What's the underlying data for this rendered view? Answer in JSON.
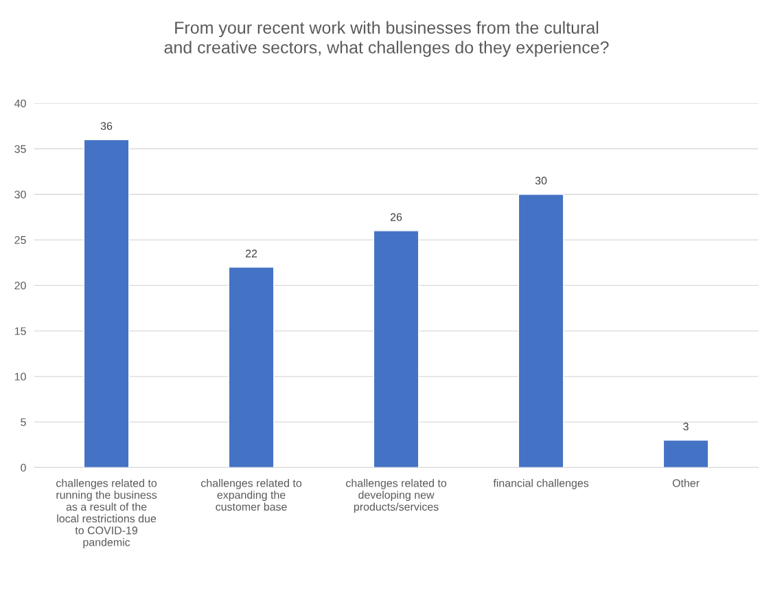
{
  "chart_data": {
    "type": "bar",
    "title": "From your recent work with businesses from the cultural\nand creative sectors, what challenges do they experience?",
    "categories": [
      "challenges related to\nrunning the business\nas a result of the\nlocal restrictions due\nto COVID-19\npandemic",
      "challenges related to\nexpanding the\ncustomer base",
      "challenges related to\ndeveloping new\nproducts/services",
      "financial challenges",
      "Other"
    ],
    "values": [
      36,
      22,
      26,
      30,
      3
    ],
    "color": "#4472c4",
    "ylim": [
      0,
      40
    ],
    "yticks": [
      0,
      5,
      10,
      15,
      20,
      25,
      30,
      35,
      40
    ],
    "grid": "y",
    "data_labels": true,
    "legend": false
  }
}
